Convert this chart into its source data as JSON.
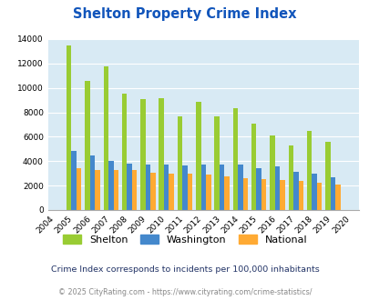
{
  "title": "Shelton Property Crime Index",
  "years": [
    2004,
    2005,
    2006,
    2007,
    2008,
    2009,
    2010,
    2011,
    2012,
    2013,
    2014,
    2015,
    2016,
    2017,
    2018,
    2019,
    2020
  ],
  "shelton": [
    null,
    13500,
    10600,
    11750,
    9500,
    9050,
    9150,
    7700,
    8850,
    7650,
    8350,
    7100,
    6100,
    5300,
    6450,
    5600,
    null
  ],
  "washington": [
    null,
    4850,
    4450,
    4050,
    3800,
    3700,
    3750,
    3650,
    3750,
    3700,
    3700,
    3450,
    3550,
    3150,
    3000,
    2700,
    null
  ],
  "national": [
    null,
    3450,
    3300,
    3250,
    3300,
    3050,
    2950,
    2950,
    2900,
    2750,
    2600,
    2550,
    2450,
    2350,
    2200,
    2100,
    null
  ],
  "bar_colors": {
    "shelton": "#99cc33",
    "washington": "#4488cc",
    "national": "#ffaa33"
  },
  "bg_color": "#d8eaf4",
  "ylim": [
    0,
    14000
  ],
  "yticks": [
    0,
    2000,
    4000,
    6000,
    8000,
    10000,
    12000,
    14000
  ],
  "legend_labels": [
    "Shelton",
    "Washington",
    "National"
  ],
  "subtitle": "Crime Index corresponds to incidents per 100,000 inhabitants",
  "footer": "© 2025 CityRating.com - https://www.cityrating.com/crime-statistics/",
  "title_color": "#1155bb",
  "subtitle_color": "#223366",
  "footer_color": "#888888"
}
